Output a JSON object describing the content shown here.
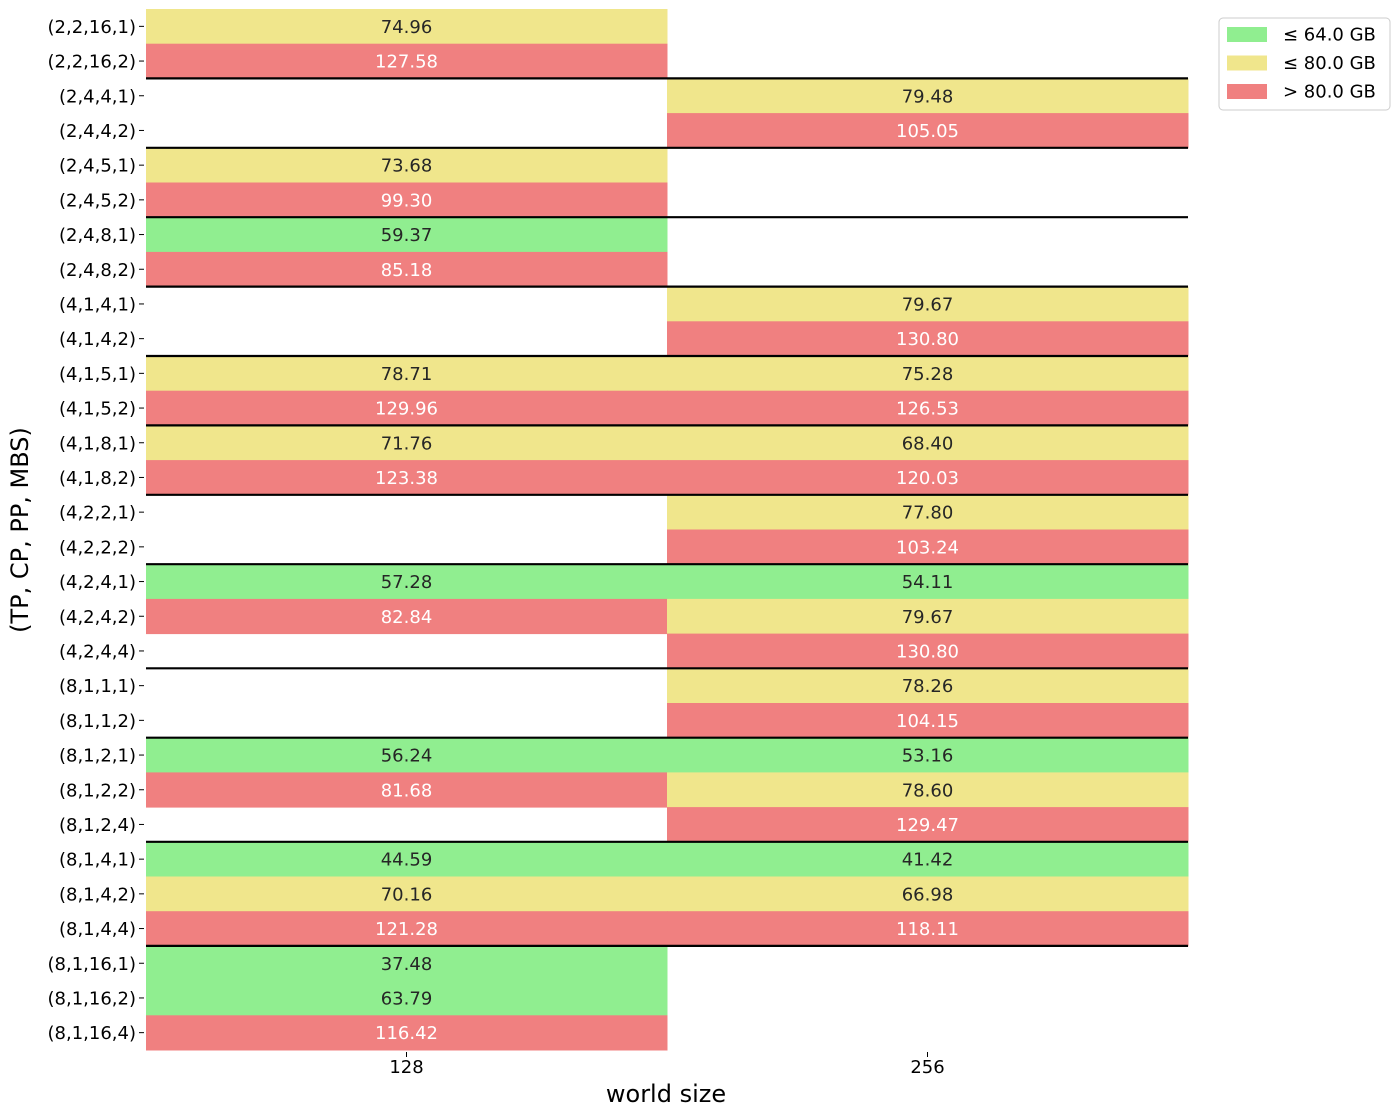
{
  "chart_data": {
    "type": "heatmap",
    "title": "",
    "xlabel": "world size",
    "ylabel": "(TP, CP, PP, MBS)",
    "columns": [
      "128",
      "256"
    ],
    "rows": [
      {
        "label": "(2,2,16,1)",
        "values": [
          74.96,
          null
        ]
      },
      {
        "label": "(2,2,16,2)",
        "values": [
          127.58,
          null
        ]
      },
      {
        "label": "(2,4,4,1)",
        "values": [
          null,
          79.48
        ]
      },
      {
        "label": "(2,4,4,2)",
        "values": [
          null,
          105.05
        ]
      },
      {
        "label": "(2,4,5,1)",
        "values": [
          73.68,
          null
        ]
      },
      {
        "label": "(2,4,5,2)",
        "values": [
          99.3,
          null
        ]
      },
      {
        "label": "(2,4,8,1)",
        "values": [
          59.37,
          null
        ]
      },
      {
        "label": "(2,4,8,2)",
        "values": [
          85.18,
          null
        ]
      },
      {
        "label": "(4,1,4,1)",
        "values": [
          null,
          79.67
        ]
      },
      {
        "label": "(4,1,4,2)",
        "values": [
          null,
          130.8
        ]
      },
      {
        "label": "(4,1,5,1)",
        "values": [
          78.71,
          75.28
        ]
      },
      {
        "label": "(4,1,5,2)",
        "values": [
          129.96,
          126.53
        ]
      },
      {
        "label": "(4,1,8,1)",
        "values": [
          71.76,
          68.4
        ]
      },
      {
        "label": "(4,1,8,2)",
        "values": [
          123.38,
          120.03
        ]
      },
      {
        "label": "(4,2,2,1)",
        "values": [
          null,
          77.8
        ]
      },
      {
        "label": "(4,2,2,2)",
        "values": [
          null,
          103.24
        ]
      },
      {
        "label": "(4,2,4,1)",
        "values": [
          57.28,
          54.11
        ]
      },
      {
        "label": "(4,2,4,2)",
        "values": [
          82.84,
          79.67
        ]
      },
      {
        "label": "(4,2,4,4)",
        "values": [
          null,
          130.8
        ]
      },
      {
        "label": "(8,1,1,1)",
        "values": [
          null,
          78.26
        ]
      },
      {
        "label": "(8,1,1,2)",
        "values": [
          null,
          104.15
        ]
      },
      {
        "label": "(8,1,2,1)",
        "values": [
          56.24,
          53.16
        ]
      },
      {
        "label": "(8,1,2,2)",
        "values": [
          81.68,
          78.6
        ]
      },
      {
        "label": "(8,1,2,4)",
        "values": [
          null,
          129.47
        ]
      },
      {
        "label": "(8,1,4,1)",
        "values": [
          44.59,
          41.42
        ]
      },
      {
        "label": "(8,1,4,2)",
        "values": [
          70.16,
          66.98
        ]
      },
      {
        "label": "(8,1,4,4)",
        "values": [
          121.28,
          118.11
        ]
      },
      {
        "label": "(8,1,16,1)",
        "values": [
          37.48,
          null
        ]
      },
      {
        "label": "(8,1,16,2)",
        "values": [
          63.79,
          null
        ]
      },
      {
        "label": "(8,1,16,4)",
        "values": [
          116.42,
          null
        ]
      }
    ],
    "group_separators_after_row": [
      1,
      3,
      5,
      7,
      9,
      11,
      13,
      15,
      18,
      20,
      23,
      26
    ],
    "thresholds": [
      64.0,
      80.0
    ],
    "legend": {
      "placement": "top-right",
      "entries": [
        {
          "label": "≤ 64.0 GB",
          "color": "#90ee90"
        },
        {
          "label": "≤ 80.0 GB",
          "color": "#f0e68c"
        },
        {
          "label": "> 80.0 GB",
          "color": "#f08080"
        }
      ]
    },
    "colors": {
      "low": "#90ee90",
      "mid": "#f0e68c",
      "high": "#f08080",
      "text_dark": "#262626",
      "text_light": "#ffffff"
    },
    "grid": false
  }
}
